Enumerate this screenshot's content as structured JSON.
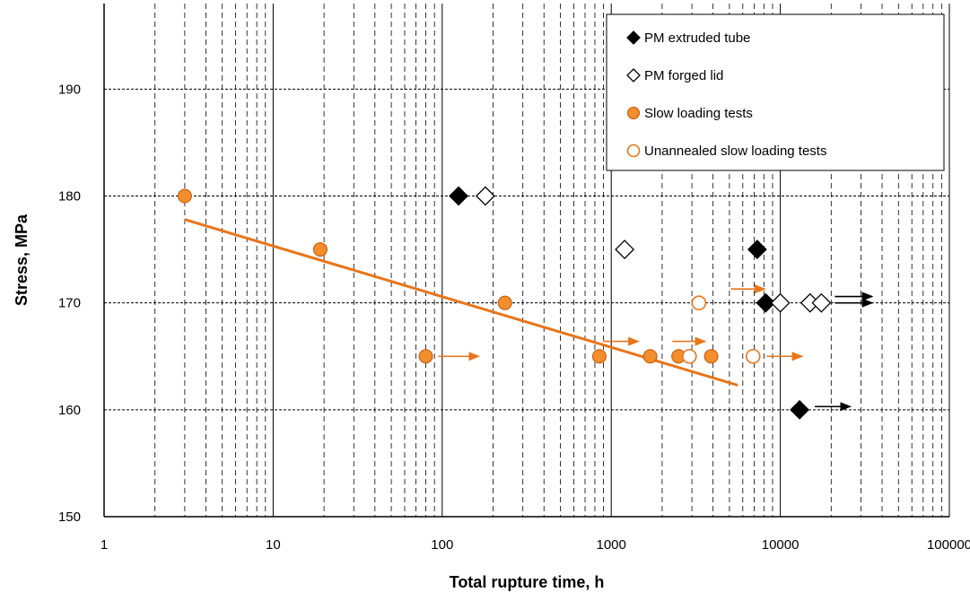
{
  "chart_data": {
    "type": "scatter",
    "xscale": "log",
    "xlim": [
      1,
      100000
    ],
    "ylim": [
      150,
      198
    ],
    "xticks": [
      "1",
      "10",
      "100",
      "1000",
      "10000",
      "100000"
    ],
    "yticks": [
      "150",
      "160",
      "170",
      "180",
      "190"
    ],
    "xlabel": "Total rupture time, h",
    "ylabel": "Stress, MPa",
    "grid": true,
    "legend_position": "top-right",
    "series": [
      {
        "name": "PM extruded tube",
        "marker": "filled-diamond",
        "color": "#000000",
        "points": [
          {
            "x": 125,
            "y": 180
          },
          {
            "x": 7300,
            "y": 175
          },
          {
            "x": 8200,
            "y": 170
          },
          {
            "x": 13000,
            "y": 160
          }
        ]
      },
      {
        "name": "PM forged lid",
        "marker": "open-diamond",
        "color": "#000000",
        "points": [
          {
            "x": 180,
            "y": 180
          },
          {
            "x": 1200,
            "y": 175
          },
          {
            "x": 10000,
            "y": 170
          },
          {
            "x": 15000,
            "y": 170
          },
          {
            "x": 17500,
            "y": 170
          }
        ]
      },
      {
        "name": "Slow loading tests",
        "marker": "filled-circle",
        "color": "#F28E2B",
        "points": [
          {
            "x": 3,
            "y": 180
          },
          {
            "x": 19,
            "y": 175
          },
          {
            "x": 235,
            "y": 170
          },
          {
            "x": 80,
            "y": 165
          },
          {
            "x": 850,
            "y": 165
          },
          {
            "x": 1700,
            "y": 165
          },
          {
            "x": 2500,
            "y": 165
          },
          {
            "x": 3900,
            "y": 165
          }
        ]
      },
      {
        "name": "Unannealed slow loading tests",
        "marker": "open-circle",
        "color": "#E8751A",
        "points": [
          {
            "x": 3300,
            "y": 170
          },
          {
            "x": 2900,
            "y": 165
          },
          {
            "x": 6900,
            "y": 165
          }
        ]
      }
    ],
    "trendline": {
      "color": "#E8751A",
      "points": [
        {
          "x": 3,
          "y": 177.8
        },
        {
          "x": 5600,
          "y": 162.3
        }
      ]
    },
    "runout_arrows": [
      {
        "x1": 95,
        "x2": 165,
        "y": 165,
        "color": "#E8751A"
      },
      {
        "x1": 900,
        "x2": 1450,
        "y": 166.4,
        "color": "#E8751A"
      },
      {
        "x1": 2300,
        "x2": 3600,
        "y": 166.4,
        "color": "#E8751A"
      },
      {
        "x1": 5100,
        "x2": 8100,
        "y": 171.3,
        "color": "#E8751A"
      },
      {
        "x1": 8300,
        "x2": 13500,
        "y": 165,
        "color": "#E8751A"
      },
      {
        "x1": 21000,
        "x2": 35000,
        "y": 170.6,
        "color": "#000000"
      },
      {
        "x1": 21000,
        "x2": 35000,
        "y": 170,
        "color": "#000000"
      },
      {
        "x1": 16000,
        "x2": 26000,
        "y": 160.3,
        "color": "#000000"
      }
    ]
  }
}
